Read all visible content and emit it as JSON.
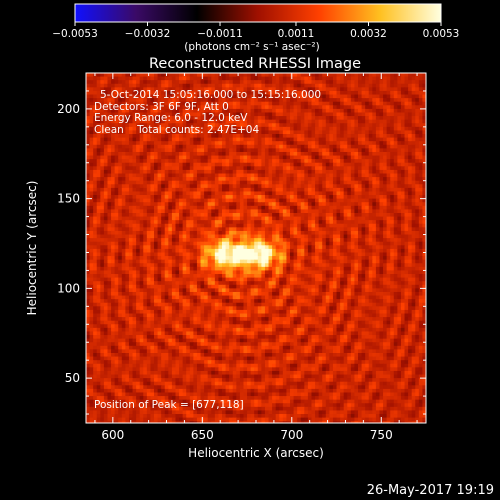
{
  "chart_data": {
    "type": "heatmap",
    "title": "Reconstructed RHESSI Image",
    "xlabel": "Heliocentric X (arcsec)",
    "ylabel": "Heliocentric Y (arcsec)",
    "xlim": [
      585,
      775
    ],
    "ylim": [
      25,
      220
    ],
    "x_ticks": [
      600,
      650,
      700,
      750
    ],
    "y_ticks": [
      50,
      100,
      150,
      200
    ],
    "colorbar": {
      "range": [
        -0.0053,
        0.0053
      ],
      "tick_values": [
        -0.0053,
        -0.0032,
        -0.0011,
        0.0011,
        0.0032,
        0.0053
      ],
      "tick_labels": [
        "−0.0053",
        "−0.0032",
        "−0.0011",
        "0.0011",
        "0.0032",
        "0.0053"
      ],
      "units_label": "(photons cm⁻² s⁻¹ asec⁻²)",
      "colors": [
        "#1010ff",
        "#3a0a66",
        "#000000",
        "#a01000",
        "#ff4000",
        "#ffc020",
        "#ffffe0"
      ]
    },
    "peak": {
      "x": 677,
      "y": 118
    },
    "annotations": {
      "time_range": "5-Oct-2014 15:05:16.000 to 15:15:16.000",
      "detectors": "Detectors: 3F 6F 9F, Att 0",
      "energy_range": "Energy Range: 6.0 - 12.0 keV",
      "clean_counts": "Clean    Total counts: 2.47E+04",
      "peak_position": "Position of Peak = [677,118]"
    },
    "source": {
      "x_range": [
        655,
        690
      ],
      "y_range": [
        110,
        128
      ]
    }
  },
  "footer": {
    "timestamp": "26-May-2017 19:19"
  }
}
